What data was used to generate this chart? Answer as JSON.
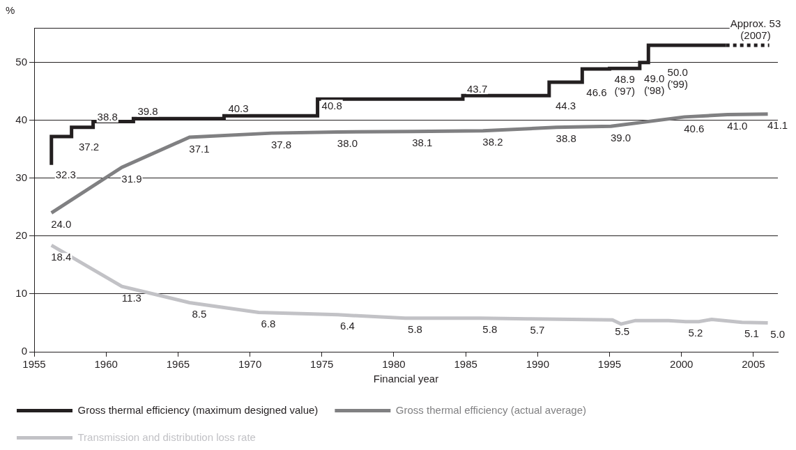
{
  "chart_data": {
    "type": "line",
    "xlabel": "Financial year",
    "ylabel": "%",
    "xlim": [
      1955,
      2006.7
    ],
    "ylim": [
      0,
      56
    ],
    "xticks": [
      1955,
      1960,
      1965,
      1970,
      1975,
      1980,
      1985,
      1990,
      1995,
      2000,
      2005
    ],
    "yticks": [
      0,
      10,
      20,
      30,
      40,
      50
    ],
    "grid": "y",
    "legend": "bottom",
    "series": [
      {
        "name": "Gross thermal efficiency (maximum designed value)",
        "type": "step",
        "color": "#231f20",
        "x": [
          1956.2,
          1957.6,
          1959.1,
          1961.9,
          1968.2,
          1974.7,
          1984.8,
          1990.8,
          1993.1,
          1995.0,
          1997.1,
          1997.7,
          1999.1,
          2003.1
        ],
        "values": [
          32.3,
          37.2,
          38.8,
          39.8,
          40.3,
          40.8,
          43.7,
          44.3,
          46.6,
          48.9,
          49.0,
          50.0,
          53,
          53
        ],
        "value_labels": [
          "32.3",
          "37.2",
          "38.8",
          "39.8",
          "40.3",
          "40.8",
          "43.7",
          "44.3",
          "46.6",
          "48.9\n('97)",
          "49.0\n('98)",
          "50.0\n('99)",
          null,
          null
        ]
      },
      {
        "type": "step",
        "color": "#231f20",
        "line_style": "dotted",
        "x": [
          2003.1,
          2006.1
        ],
        "values": [
          53,
          53
        ],
        "value_labels": [
          "Approx. 53\n(2007)",
          null
        ]
      },
      {
        "name": "Gross thermal efficiency (actual average)",
        "type": "line",
        "color": "#808082",
        "x": [
          1956.2,
          1961.1,
          1965.8,
          1971.5,
          1976.1,
          1981.3,
          1986.2,
          1991.3,
          1995.1,
          2000.2,
          2003.2,
          2006.0
        ],
        "values": [
          24.0,
          31.9,
          37.1,
          37.8,
          38.0,
          38.1,
          38.2,
          38.8,
          39.0,
          40.6,
          41.0,
          41.1
        ],
        "value_labels": [
          "24.0",
          "31.9",
          "37.1",
          "37.8",
          "38.0",
          "38.1",
          "38.2",
          "38.8",
          "39.0",
          "40.6",
          "41.0",
          "41.1"
        ]
      },
      {
        "name": "Transmission and distribution loss rate",
        "type": "line",
        "color": "#c2c2c6",
        "x": [
          1956.2,
          1961.1,
          1965.8,
          1970.6,
          1976.1,
          1980.8,
          1986.0,
          1989.3,
          1995.2,
          1995.8,
          1996.8,
          1999.1,
          2000.3,
          2001.2,
          2002.1,
          2004.2,
          2006.0
        ],
        "values": [
          18.4,
          11.3,
          8.5,
          6.8,
          6.4,
          5.8,
          5.8,
          5.7,
          5.5,
          4.8,
          5.4,
          5.4,
          5.2,
          5.2,
          5.6,
          5.1,
          5.0
        ],
        "value_labels": [
          "18.4",
          "11.3",
          "8.5",
          "6.8",
          "6.4",
          "5.8",
          "5.8",
          "5.7",
          "5.5",
          null,
          null,
          null,
          "5.2",
          null,
          null,
          "5.1",
          "5.0"
        ]
      }
    ]
  }
}
